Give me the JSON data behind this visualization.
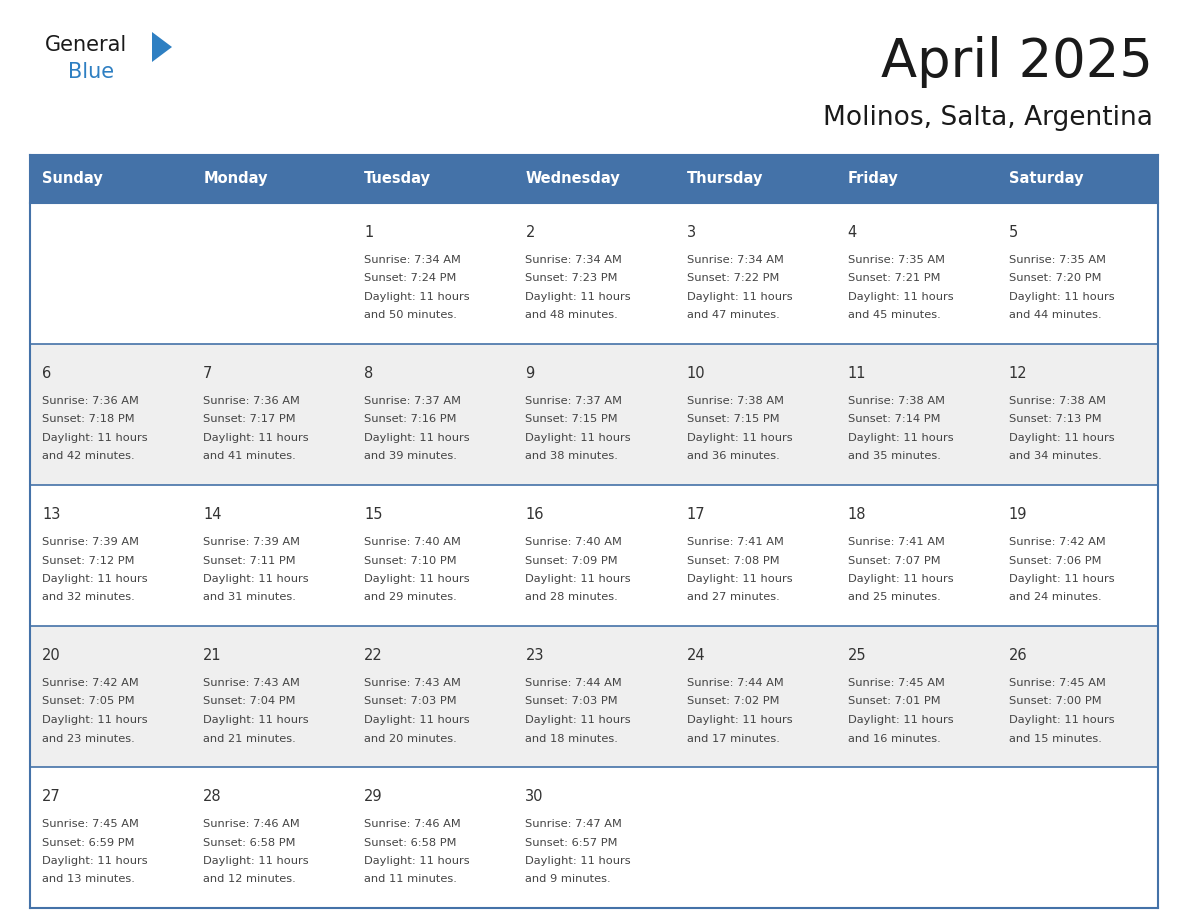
{
  "title": "April 2025",
  "subtitle": "Molinos, Salta, Argentina",
  "header_bg_color": "#4472a8",
  "header_text_color": "#ffffff",
  "cell_bg_light": "#efefef",
  "cell_bg_white": "#ffffff",
  "cell_text_color": "#444444",
  "day_number_color": "#333333",
  "divider_color": "#4472a8",
  "days_of_week": [
    "Sunday",
    "Monday",
    "Tuesday",
    "Wednesday",
    "Thursday",
    "Friday",
    "Saturday"
  ],
  "weeks": [
    [
      {
        "day": "",
        "sunrise": "",
        "sunset": "",
        "daylight": ""
      },
      {
        "day": "",
        "sunrise": "",
        "sunset": "",
        "daylight": ""
      },
      {
        "day": "1",
        "sunrise": "Sunrise: 7:34 AM",
        "sunset": "Sunset: 7:24 PM",
        "daylight": "Daylight: 11 hours\nand 50 minutes."
      },
      {
        "day": "2",
        "sunrise": "Sunrise: 7:34 AM",
        "sunset": "Sunset: 7:23 PM",
        "daylight": "Daylight: 11 hours\nand 48 minutes."
      },
      {
        "day": "3",
        "sunrise": "Sunrise: 7:34 AM",
        "sunset": "Sunset: 7:22 PM",
        "daylight": "Daylight: 11 hours\nand 47 minutes."
      },
      {
        "day": "4",
        "sunrise": "Sunrise: 7:35 AM",
        "sunset": "Sunset: 7:21 PM",
        "daylight": "Daylight: 11 hours\nand 45 minutes."
      },
      {
        "day": "5",
        "sunrise": "Sunrise: 7:35 AM",
        "sunset": "Sunset: 7:20 PM",
        "daylight": "Daylight: 11 hours\nand 44 minutes."
      }
    ],
    [
      {
        "day": "6",
        "sunrise": "Sunrise: 7:36 AM",
        "sunset": "Sunset: 7:18 PM",
        "daylight": "Daylight: 11 hours\nand 42 minutes."
      },
      {
        "day": "7",
        "sunrise": "Sunrise: 7:36 AM",
        "sunset": "Sunset: 7:17 PM",
        "daylight": "Daylight: 11 hours\nand 41 minutes."
      },
      {
        "day": "8",
        "sunrise": "Sunrise: 7:37 AM",
        "sunset": "Sunset: 7:16 PM",
        "daylight": "Daylight: 11 hours\nand 39 minutes."
      },
      {
        "day": "9",
        "sunrise": "Sunrise: 7:37 AM",
        "sunset": "Sunset: 7:15 PM",
        "daylight": "Daylight: 11 hours\nand 38 minutes."
      },
      {
        "day": "10",
        "sunrise": "Sunrise: 7:38 AM",
        "sunset": "Sunset: 7:15 PM",
        "daylight": "Daylight: 11 hours\nand 36 minutes."
      },
      {
        "day": "11",
        "sunrise": "Sunrise: 7:38 AM",
        "sunset": "Sunset: 7:14 PM",
        "daylight": "Daylight: 11 hours\nand 35 minutes."
      },
      {
        "day": "12",
        "sunrise": "Sunrise: 7:38 AM",
        "sunset": "Sunset: 7:13 PM",
        "daylight": "Daylight: 11 hours\nand 34 minutes."
      }
    ],
    [
      {
        "day": "13",
        "sunrise": "Sunrise: 7:39 AM",
        "sunset": "Sunset: 7:12 PM",
        "daylight": "Daylight: 11 hours\nand 32 minutes."
      },
      {
        "day": "14",
        "sunrise": "Sunrise: 7:39 AM",
        "sunset": "Sunset: 7:11 PM",
        "daylight": "Daylight: 11 hours\nand 31 minutes."
      },
      {
        "day": "15",
        "sunrise": "Sunrise: 7:40 AM",
        "sunset": "Sunset: 7:10 PM",
        "daylight": "Daylight: 11 hours\nand 29 minutes."
      },
      {
        "day": "16",
        "sunrise": "Sunrise: 7:40 AM",
        "sunset": "Sunset: 7:09 PM",
        "daylight": "Daylight: 11 hours\nand 28 minutes."
      },
      {
        "day": "17",
        "sunrise": "Sunrise: 7:41 AM",
        "sunset": "Sunset: 7:08 PM",
        "daylight": "Daylight: 11 hours\nand 27 minutes."
      },
      {
        "day": "18",
        "sunrise": "Sunrise: 7:41 AM",
        "sunset": "Sunset: 7:07 PM",
        "daylight": "Daylight: 11 hours\nand 25 minutes."
      },
      {
        "day": "19",
        "sunrise": "Sunrise: 7:42 AM",
        "sunset": "Sunset: 7:06 PM",
        "daylight": "Daylight: 11 hours\nand 24 minutes."
      }
    ],
    [
      {
        "day": "20",
        "sunrise": "Sunrise: 7:42 AM",
        "sunset": "Sunset: 7:05 PM",
        "daylight": "Daylight: 11 hours\nand 23 minutes."
      },
      {
        "day": "21",
        "sunrise": "Sunrise: 7:43 AM",
        "sunset": "Sunset: 7:04 PM",
        "daylight": "Daylight: 11 hours\nand 21 minutes."
      },
      {
        "day": "22",
        "sunrise": "Sunrise: 7:43 AM",
        "sunset": "Sunset: 7:03 PM",
        "daylight": "Daylight: 11 hours\nand 20 minutes."
      },
      {
        "day": "23",
        "sunrise": "Sunrise: 7:44 AM",
        "sunset": "Sunset: 7:03 PM",
        "daylight": "Daylight: 11 hours\nand 18 minutes."
      },
      {
        "day": "24",
        "sunrise": "Sunrise: 7:44 AM",
        "sunset": "Sunset: 7:02 PM",
        "daylight": "Daylight: 11 hours\nand 17 minutes."
      },
      {
        "day": "25",
        "sunrise": "Sunrise: 7:45 AM",
        "sunset": "Sunset: 7:01 PM",
        "daylight": "Daylight: 11 hours\nand 16 minutes."
      },
      {
        "day": "26",
        "sunrise": "Sunrise: 7:45 AM",
        "sunset": "Sunset: 7:00 PM",
        "daylight": "Daylight: 11 hours\nand 15 minutes."
      }
    ],
    [
      {
        "day": "27",
        "sunrise": "Sunrise: 7:45 AM",
        "sunset": "Sunset: 6:59 PM",
        "daylight": "Daylight: 11 hours\nand 13 minutes."
      },
      {
        "day": "28",
        "sunrise": "Sunrise: 7:46 AM",
        "sunset": "Sunset: 6:58 PM",
        "daylight": "Daylight: 11 hours\nand 12 minutes."
      },
      {
        "day": "29",
        "sunrise": "Sunrise: 7:46 AM",
        "sunset": "Sunset: 6:58 PM",
        "daylight": "Daylight: 11 hours\nand 11 minutes."
      },
      {
        "day": "30",
        "sunrise": "Sunrise: 7:47 AM",
        "sunset": "Sunset: 6:57 PM",
        "daylight": "Daylight: 11 hours\nand 9 minutes."
      },
      {
        "day": "",
        "sunrise": "",
        "sunset": "",
        "daylight": ""
      },
      {
        "day": "",
        "sunrise": "",
        "sunset": "",
        "daylight": ""
      },
      {
        "day": "",
        "sunrise": "",
        "sunset": "",
        "daylight": ""
      }
    ]
  ],
  "logo_general_color": "#1a1a1a",
  "logo_blue_color": "#2e7fc2",
  "logo_triangle_color": "#2e7fc2",
  "fig_width": 11.88,
  "fig_height": 9.18,
  "dpi": 100
}
